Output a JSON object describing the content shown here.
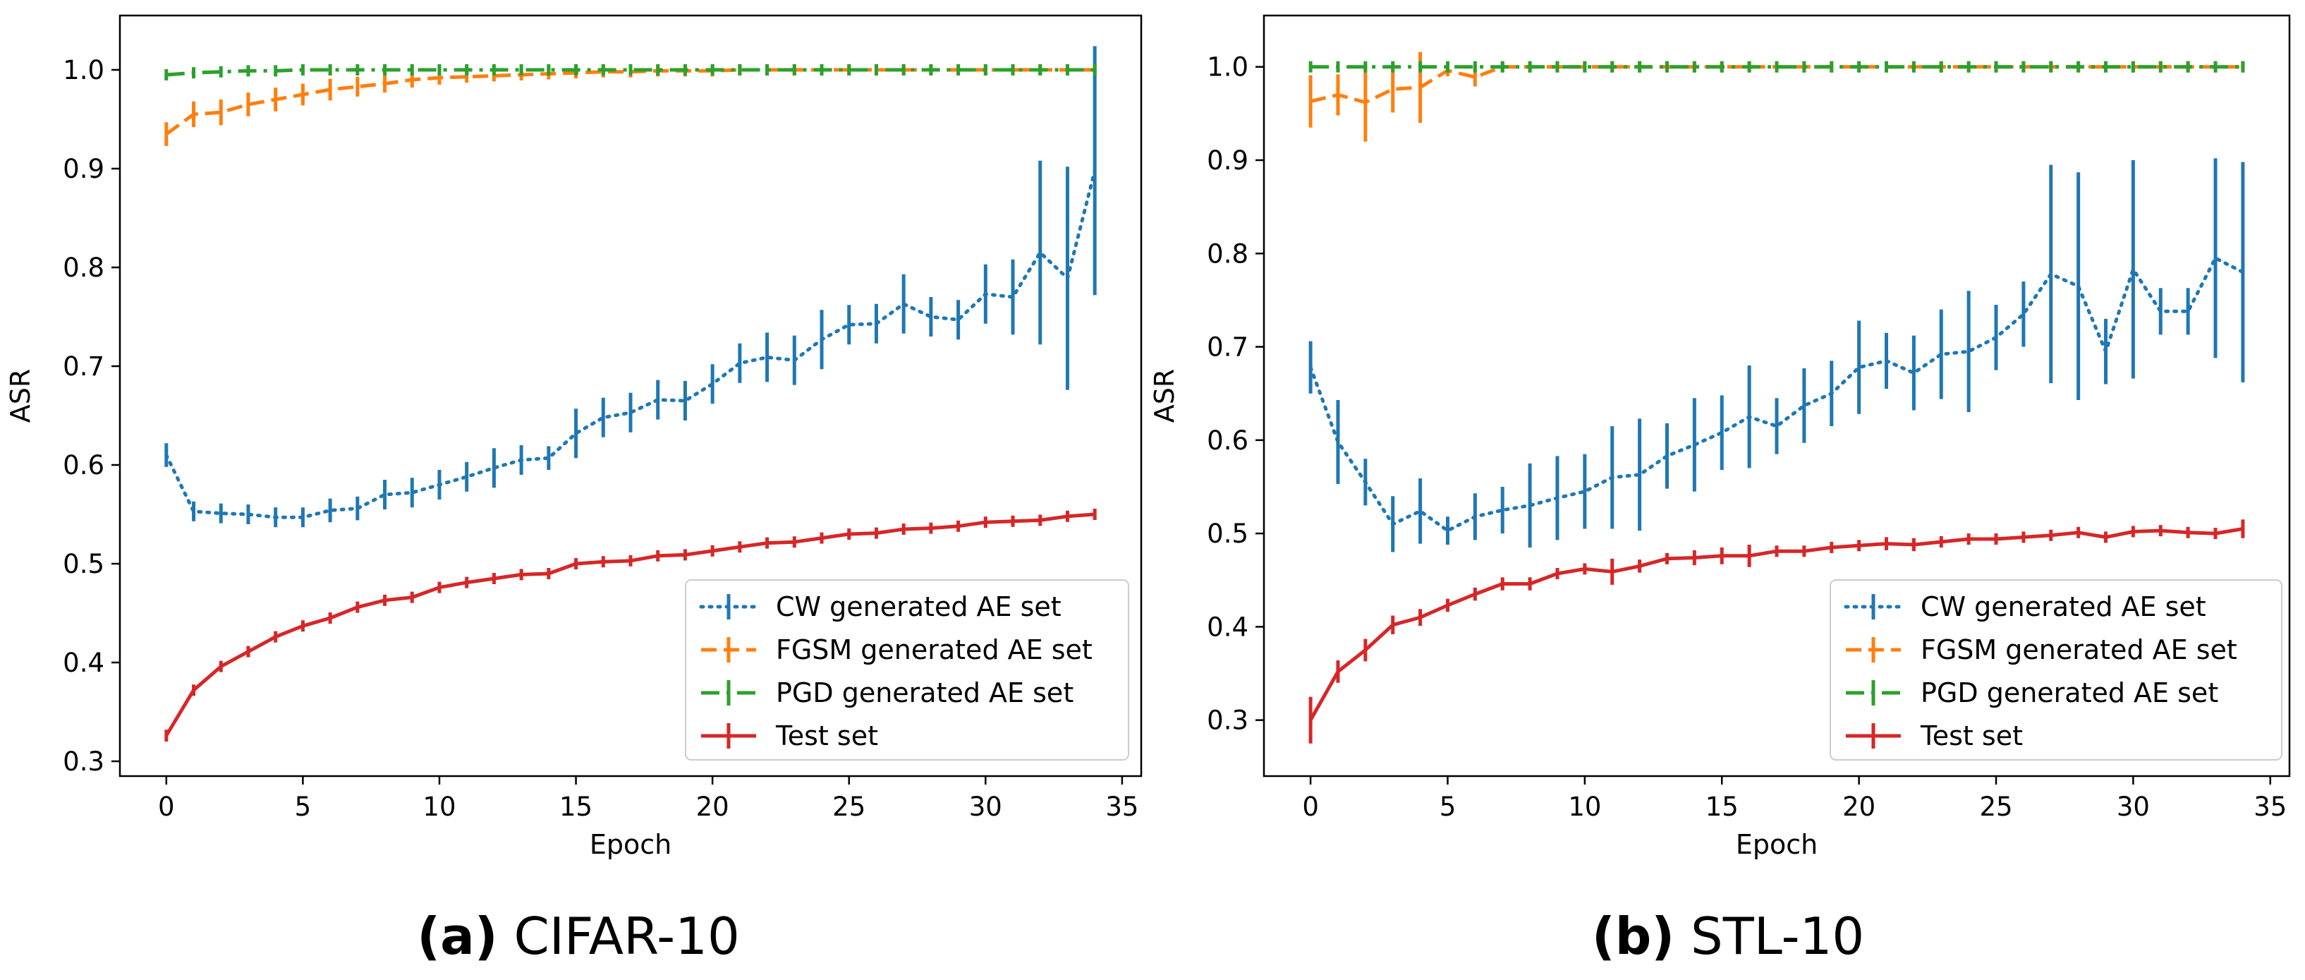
{
  "colors": {
    "cw": "#1f77b4",
    "fgsm": "#ff7f0e",
    "pgd": "#2ca02c",
    "test": "#d62728"
  },
  "chart_data": [
    {
      "type": "line",
      "panel_label": "(a)",
      "caption": "CIFAR-10",
      "xlabel": "Epoch",
      "ylabel": "ASR",
      "xlim": [
        -1.7,
        35.7
      ],
      "ylim": [
        0.285,
        1.055
      ],
      "xticks": [
        0,
        5,
        10,
        15,
        20,
        25,
        30,
        35
      ],
      "yticks": [
        0.3,
        0.4,
        0.5,
        0.6,
        0.7,
        0.8,
        0.9,
        1.0
      ],
      "ytick_labels": [
        "0.3",
        "0.4",
        "0.5",
        "0.6",
        "0.7",
        "0.8",
        "0.9",
        "1.0"
      ],
      "legend_position": "lower-right",
      "x": [
        0,
        1,
        2,
        3,
        4,
        5,
        6,
        7,
        8,
        9,
        10,
        11,
        12,
        13,
        14,
        15,
        16,
        17,
        18,
        19,
        20,
        21,
        22,
        23,
        24,
        25,
        26,
        27,
        28,
        29,
        30,
        31,
        32,
        33,
        34
      ],
      "series": [
        {
          "key": "cw",
          "name": "CW generated AE set",
          "style": "dotted",
          "values": [
            0.61,
            0.553,
            0.551,
            0.55,
            0.547,
            0.547,
            0.554,
            0.556,
            0.57,
            0.572,
            0.58,
            0.588,
            0.597,
            0.605,
            0.607,
            0.632,
            0.648,
            0.653,
            0.666,
            0.665,
            0.682,
            0.703,
            0.709,
            0.706,
            0.727,
            0.742,
            0.743,
            0.763,
            0.75,
            0.747,
            0.773,
            0.77,
            0.815,
            0.789,
            0.898
          ],
          "errors": [
            0.012,
            0.01,
            0.01,
            0.01,
            0.01,
            0.01,
            0.012,
            0.012,
            0.015,
            0.015,
            0.015,
            0.015,
            0.02,
            0.015,
            0.012,
            0.025,
            0.02,
            0.02,
            0.02,
            0.02,
            0.02,
            0.02,
            0.025,
            0.025,
            0.03,
            0.02,
            0.02,
            0.03,
            0.02,
            0.02,
            0.03,
            0.038,
            0.093,
            0.113,
            0.126
          ]
        },
        {
          "key": "fgsm",
          "name": "FGSM generated AE set",
          "style": "dashed",
          "values": [
            0.935,
            0.955,
            0.957,
            0.965,
            0.97,
            0.975,
            0.98,
            0.983,
            0.986,
            0.99,
            0.992,
            0.993,
            0.994,
            0.995,
            0.996,
            0.997,
            0.998,
            0.998,
            0.999,
            0.999,
            0.999,
            1.0,
            1.0,
            1.0,
            1.0,
            1.0,
            1.0,
            1.0,
            1.0,
            1.0,
            1.0,
            1.0,
            1.0,
            1.0,
            1.0
          ],
          "errors": [
            0.012,
            0.013,
            0.013,
            0.012,
            0.012,
            0.011,
            0.011,
            0.01,
            0.009,
            0.008,
            0.007,
            0.006,
            0.005,
            0.004,
            0.003,
            0.003,
            0.002,
            0.002,
            0.002,
            0.001,
            0.001,
            0.001,
            0,
            0,
            0,
            0,
            0,
            0,
            0,
            0,
            0,
            0,
            0,
            0,
            0
          ]
        },
        {
          "key": "pgd",
          "name": "PGD generated AE set",
          "style": "dashdot",
          "values": [
            0.995,
            0.997,
            0.998,
            0.999,
            0.999,
            1.0,
            1.0,
            1.0,
            1.0,
            1.0,
            1.0,
            1.0,
            1.0,
            1.0,
            1.0,
            1.0,
            1.0,
            1.0,
            1.0,
            1.0,
            1.0,
            1.0,
            1.0,
            1.0,
            1.0,
            1.0,
            1.0,
            1.0,
            1.0,
            1.0,
            1.0,
            1.0,
            1.0,
            1.0,
            1.0
          ],
          "errors": [
            0.002,
            0.001,
            0.001,
            0,
            0,
            0,
            0,
            0,
            0,
            0,
            0,
            0,
            0,
            0,
            0,
            0,
            0,
            0,
            0,
            0,
            0,
            0,
            0,
            0,
            0,
            0,
            0,
            0,
            0,
            0,
            0,
            0,
            0,
            0,
            0
          ]
        },
        {
          "key": "test",
          "name": "Test set",
          "style": "solid",
          "values": [
            0.326,
            0.372,
            0.396,
            0.411,
            0.426,
            0.437,
            0.445,
            0.456,
            0.463,
            0.466,
            0.476,
            0.481,
            0.485,
            0.489,
            0.49,
            0.5,
            0.502,
            0.503,
            0.508,
            0.509,
            0.513,
            0.517,
            0.521,
            0.522,
            0.526,
            0.53,
            0.531,
            0.535,
            0.536,
            0.538,
            0.542,
            0.543,
            0.544,
            0.548,
            0.55
          ],
          "errors": [
            0.006,
            0.004,
            0.003,
            0.003,
            0.003,
            0.003,
            0.003,
            0.003,
            0.003,
            0.003,
            0.003,
            0.003,
            0.003,
            0.003,
            0.003,
            0.003,
            0.003,
            0.003,
            0.003,
            0.003,
            0.003,
            0.003,
            0.003,
            0.003,
            0.003,
            0.003,
            0.003,
            0.003,
            0.003,
            0.003,
            0.003,
            0.003,
            0.003,
            0.003,
            0.003
          ]
        }
      ]
    },
    {
      "type": "line",
      "panel_label": "(b)",
      "caption": "STL-10",
      "xlabel": "Epoch",
      "ylabel": "ASR",
      "xlim": [
        -1.7,
        35.7
      ],
      "ylim": [
        0.24,
        1.055
      ],
      "xticks": [
        0,
        5,
        10,
        15,
        20,
        25,
        30,
        35
      ],
      "yticks": [
        0.3,
        0.4,
        0.5,
        0.6,
        0.7,
        0.8,
        0.9,
        1.0
      ],
      "ytick_labels": [
        "0.3",
        "0.4",
        "0.5",
        "0.6",
        "0.7",
        "0.8",
        "0.9",
        "1.0"
      ],
      "legend_position": "lower-right",
      "x": [
        0,
        1,
        2,
        3,
        4,
        5,
        6,
        7,
        8,
        9,
        10,
        11,
        12,
        13,
        14,
        15,
        16,
        17,
        18,
        19,
        20,
        21,
        22,
        23,
        24,
        25,
        26,
        27,
        28,
        29,
        30,
        31,
        32,
        33,
        34
      ],
      "series": [
        {
          "key": "cw",
          "name": "CW generated AE set",
          "style": "dotted",
          "values": [
            0.678,
            0.598,
            0.555,
            0.51,
            0.524,
            0.503,
            0.518,
            0.525,
            0.53,
            0.538,
            0.545,
            0.56,
            0.563,
            0.583,
            0.595,
            0.608,
            0.625,
            0.615,
            0.637,
            0.65,
            0.678,
            0.685,
            0.672,
            0.692,
            0.695,
            0.71,
            0.735,
            0.778,
            0.765,
            0.695,
            0.783,
            0.738,
            0.738,
            0.795,
            0.78
          ],
          "errors": [
            0.028,
            0.045,
            0.025,
            0.03,
            0.035,
            0.015,
            0.025,
            0.025,
            0.045,
            0.045,
            0.04,
            0.055,
            0.06,
            0.035,
            0.05,
            0.04,
            0.055,
            0.03,
            0.04,
            0.035,
            0.05,
            0.03,
            0.04,
            0.048,
            0.065,
            0.035,
            0.035,
            0.117,
            0.122,
            0.035,
            0.117,
            0.025,
            0.025,
            0.107,
            0.118
          ]
        },
        {
          "key": "fgsm",
          "name": "FGSM generated AE set",
          "style": "dashed",
          "values": [
            0.963,
            0.97,
            0.962,
            0.976,
            0.978,
            0.996,
            0.989,
            1.0,
            1.0,
            1.0,
            1.0,
            1.0,
            1.0,
            1.0,
            1.0,
            1.0,
            1.0,
            1.0,
            1.0,
            1.0,
            1.0,
            1.0,
            1.0,
            1.0,
            1.0,
            1.0,
            1.0,
            1.0,
            1.0,
            1.0,
            1.0,
            1.0,
            1.0,
            1.0,
            1.0
          ],
          "errors": [
            0.028,
            0.022,
            0.042,
            0.025,
            0.038,
            0.006,
            0.01,
            0.002,
            0,
            0,
            0,
            0,
            0,
            0,
            0,
            0,
            0,
            0,
            0,
            0,
            0,
            0,
            0,
            0,
            0,
            0,
            0,
            0,
            0,
            0,
            0,
            0,
            0,
            0,
            0
          ]
        },
        {
          "key": "pgd",
          "name": "PGD generated AE set",
          "style": "dashdot",
          "values": [
            1.0,
            1.0,
            1.0,
            1.0,
            1.0,
            1.0,
            1.0,
            1.0,
            1.0,
            1.0,
            1.0,
            1.0,
            1.0,
            1.0,
            1.0,
            1.0,
            1.0,
            1.0,
            1.0,
            1.0,
            1.0,
            1.0,
            1.0,
            1.0,
            1.0,
            1.0,
            1.0,
            1.0,
            1.0,
            1.0,
            1.0,
            1.0,
            1.0,
            1.0,
            1.0
          ],
          "errors": [
            0,
            0,
            0,
            0,
            0,
            0,
            0,
            0,
            0,
            0,
            0,
            0,
            0,
            0,
            0,
            0,
            0,
            0,
            0,
            0,
            0,
            0,
            0,
            0,
            0,
            0,
            0,
            0,
            0,
            0,
            0,
            0,
            0,
            0,
            0
          ]
        },
        {
          "key": "test",
          "name": "Test set",
          "style": "solid",
          "values": [
            0.3,
            0.352,
            0.375,
            0.402,
            0.41,
            0.423,
            0.435,
            0.446,
            0.446,
            0.457,
            0.462,
            0.459,
            0.465,
            0.473,
            0.474,
            0.476,
            0.476,
            0.481,
            0.481,
            0.485,
            0.487,
            0.489,
            0.488,
            0.491,
            0.494,
            0.494,
            0.496,
            0.498,
            0.501,
            0.496,
            0.502,
            0.503,
            0.501,
            0.5,
            0.505
          ],
          "errors": [
            0.025,
            0.012,
            0.012,
            0.01,
            0.009,
            0.007,
            0.007,
            0.007,
            0.007,
            0.006,
            0.006,
            0.014,
            0.007,
            0.005,
            0.008,
            0.009,
            0.012,
            0.006,
            0.005,
            0.005,
            0.005,
            0.007,
            0.007,
            0.006,
            0.005,
            0.005,
            0.005,
            0.006,
            0.005,
            0.004,
            0.005,
            0.005,
            0.004,
            0.004,
            0.01
          ]
        }
      ]
    }
  ]
}
